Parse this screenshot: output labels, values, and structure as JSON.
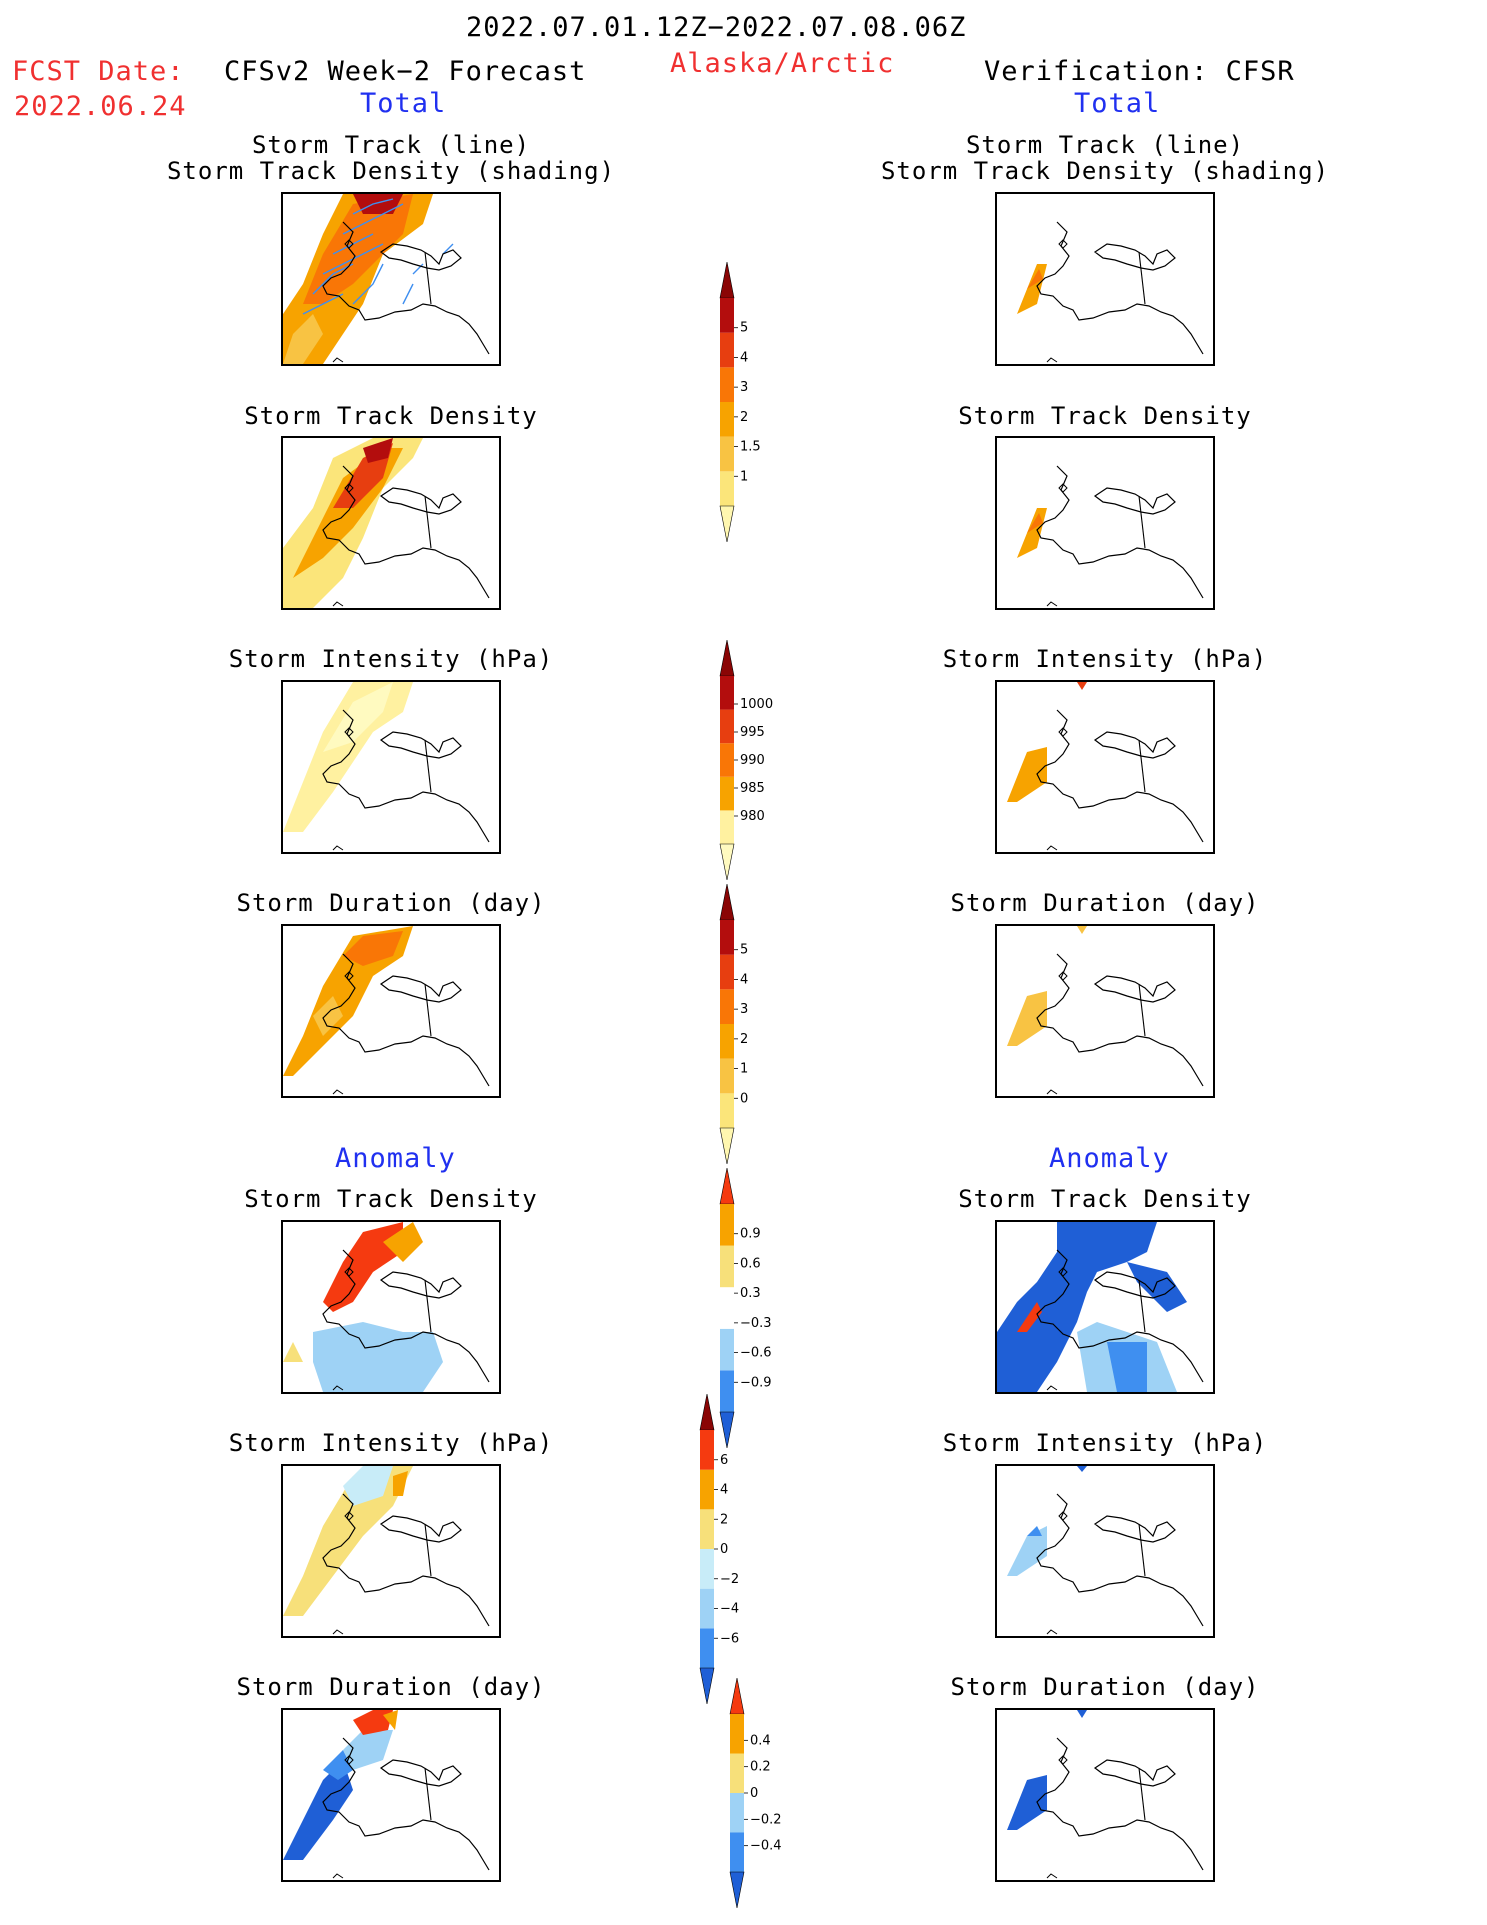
{
  "header": {
    "date_range": "2022.07.01.12Z−2022.07.08.06Z",
    "fcst_label": "FCST Date:",
    "fcst_date": "2022.06.24",
    "forecast_title": "CFSv2 Week−2 Forecast",
    "region": "Alaska/Arctic",
    "verification_title": "Verification: CFSR",
    "total_left": "Total",
    "total_right": "Total",
    "anomaly_left": "Anomaly",
    "anomaly_right": "Anomaly"
  },
  "panel_titles": {
    "track_line": "Storm Track (line)",
    "track_density_shading": "Storm Track Density (shading)",
    "track_density": "Storm Track Density",
    "intensity": "Storm Intensity (hPa)",
    "duration": "Storm Duration (day)"
  },
  "colorbars": [
    {
      "name": "density-total",
      "colors": [
        "#fff7b0",
        "#fbe57a",
        "#f8c343",
        "#f7a300",
        "#f97606",
        "#e73e10",
        "#b30d0d",
        "#8a0505"
      ],
      "labels": [
        "5",
        "4",
        "3",
        "2",
        "1.5",
        "1"
      ]
    },
    {
      "name": "intensity-total",
      "colors": [
        "#fffac0",
        "#fff1a0",
        "#f7a300",
        "#f97606",
        "#e73e10",
        "#b30d0d",
        "#8a0505"
      ],
      "labels": [
        "1000",
        "995",
        "990",
        "985",
        "980"
      ]
    },
    {
      "name": "duration-total",
      "colors": [
        "#fff7b0",
        "#fbe57a",
        "#f8c343",
        "#f7a300",
        "#f97606",
        "#e73e10",
        "#b30d0d",
        "#8a0505"
      ],
      "labels": [
        "5",
        "4",
        "3",
        "2",
        "1",
        "0"
      ]
    },
    {
      "name": "density-anom",
      "colors": [
        "#1f5fd6",
        "#3f8ff0",
        "#9ed2f5",
        "#ffffff",
        "#f7e07a",
        "#f7a300",
        "#f53a10"
      ],
      "labels": [
        "0.9",
        "0.6",
        "0.3",
        "−0.3",
        "−0.6",
        "−0.9"
      ]
    },
    {
      "name": "intensity-anom",
      "colors": [
        "#1f5fd6",
        "#3f8ff0",
        "#9ed2f5",
        "#c8ecf8",
        "#f7e07a",
        "#f7a300",
        "#f53a10",
        "#8a0505"
      ],
      "labels": [
        "6",
        "4",
        "2",
        "0",
        "−2",
        "−4",
        "−6"
      ]
    },
    {
      "name": "duration-anom",
      "colors": [
        "#1f5fd6",
        "#3f8ff0",
        "#9ed2f5",
        "#f7e07a",
        "#f7a300",
        "#f53a10"
      ],
      "labels": [
        "0.4",
        "0.2",
        "0",
        "−0.2",
        "−0.4"
      ]
    }
  ]
}
